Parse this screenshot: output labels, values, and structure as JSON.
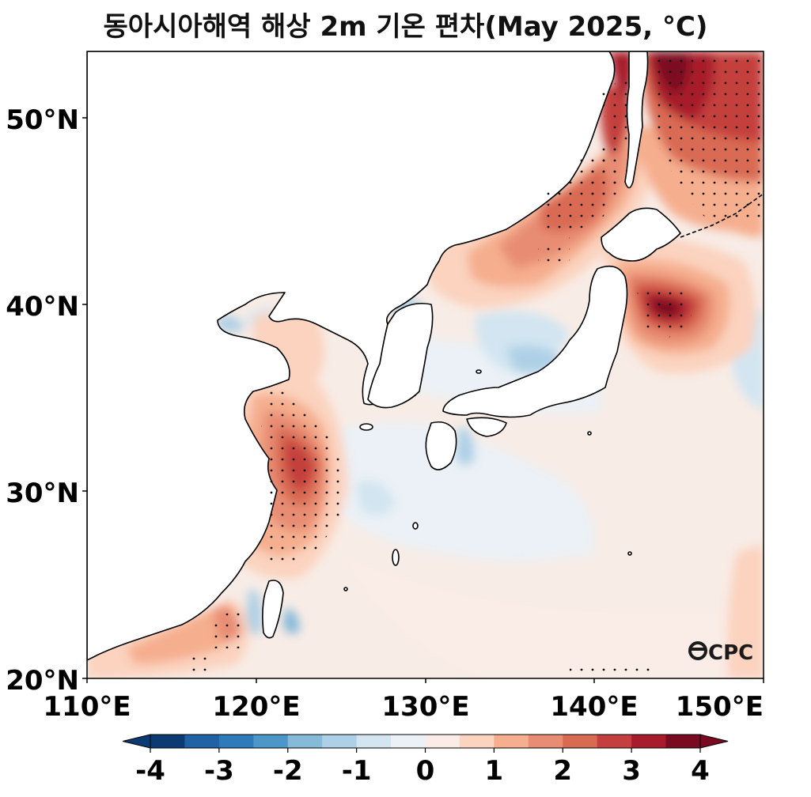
{
  "title": "동아시아해역 해상 2m 기온 편차(May 2025, °C)",
  "map": {
    "lon_range": [
      110,
      150
    ],
    "lat_range": [
      20,
      53.5
    ],
    "lat_ticks": [
      "20°N",
      "30°N",
      "40°N",
      "50°N"
    ],
    "lon_ticks": [
      "110°E",
      "120°E",
      "130°E",
      "140°E",
      "150°E"
    ],
    "stippling": "significant anomalies marked with dots"
  },
  "colorbar": {
    "ticks": [
      "-4",
      "-3",
      "-2",
      "-1",
      "0",
      "1",
      "2",
      "3",
      "4"
    ],
    "levels": [
      -4,
      -3.5,
      -3,
      -2.5,
      -2,
      -1.5,
      -1,
      -0.5,
      0,
      0.5,
      1,
      1.5,
      2,
      2.5,
      3,
      3.5,
      4
    ],
    "colors": [
      "#0b3b72",
      "#1f62a6",
      "#2f7ab8",
      "#4c97c8",
      "#86bad9",
      "#aed0e6",
      "#d2e5f1",
      "#ebf1f6",
      "#faece6",
      "#fbd3bf",
      "#f5ae8e",
      "#e88d73",
      "#d96a52",
      "#c43f3d",
      "#a81b2c",
      "#7a0a21"
    ]
  },
  "watermark": "CPC"
}
